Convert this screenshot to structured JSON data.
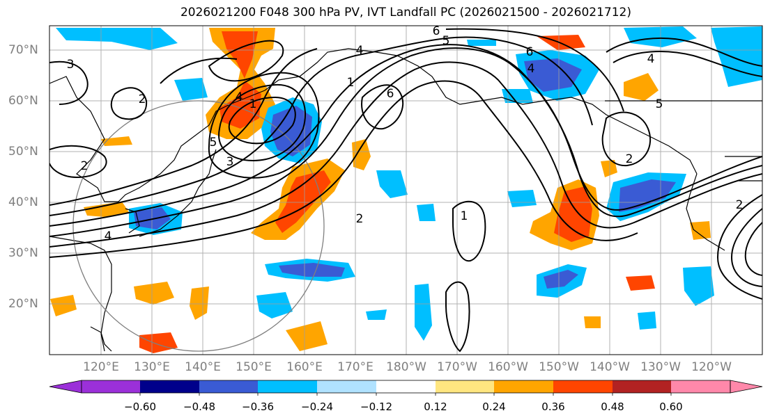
{
  "title": "2026021200 F048 300 hPa PV, IVT Landfall PC (2026021500 - 2026021712)",
  "lat_labels": [
    "70°N",
    "60°N",
    "50°N",
    "40°N",
    "30°N",
    "20°N"
  ],
  "lon_labels": [
    "120°E",
    "130°E",
    "140°E",
    "150°E",
    "160°E",
    "170°E",
    "180°W",
    "170°W",
    "160°W",
    "150°W",
    "140°W",
    "130°W",
    "120°W"
  ],
  "colorbar": {
    "tick_labels": [
      "−0.60",
      "−0.48",
      "−0.36",
      "−0.24",
      "−0.12",
      "0.12",
      "0.24",
      "0.36",
      "0.48",
      "0.60"
    ],
    "colors": [
      "#9b30d9",
      "#00008b",
      "#3a5bd4",
      "#00bfff",
      "#b0e2ff",
      "#ffffff",
      "#ffe680",
      "#ffa500",
      "#ff4500",
      "#b22222",
      "#ff88aa"
    ]
  },
  "contour_labels": [
    "6",
    "5",
    "4",
    "3",
    "2",
    "1",
    "4",
    "3",
    "5",
    "6",
    "2",
    "2",
    "4",
    "1",
    "1",
    "2",
    "6",
    "4",
    "5",
    "4",
    "2"
  ],
  "colors": {
    "land_outline": "#000000",
    "grid": "#9e9e9e",
    "circle": "#7f7f7f",
    "contour": "#000000"
  }
}
